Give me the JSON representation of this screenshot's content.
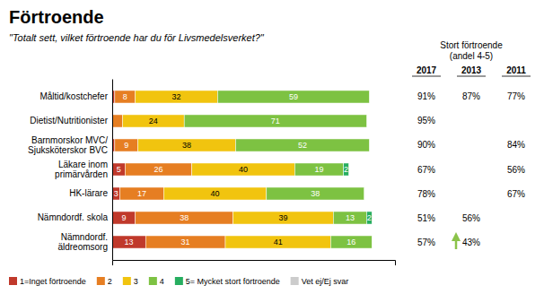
{
  "chart_data": {
    "type": "bar",
    "orientation": "horizontal",
    "stacked": true,
    "title": "Förtroende",
    "subtitle": "\"Totalt sett, vilket förtroende har du för Livsmedelsverket?\"",
    "categories": [
      "Måltid/kostchefer",
      "Dietist/Nutritionister",
      "Barnmorskor MVC/\nSjuksköterskor BVC",
      "Läkare inom\nprimärvården",
      "HK-lärare",
      "Nämndordf. skola",
      "Nämndordf.\näldreomsorg"
    ],
    "series": [
      {
        "name": "1=Inget förtroende",
        "color": "#c0392b",
        "values": [
          1,
          0,
          1,
          5,
          3,
          9,
          13
        ],
        "value_labels": [
          null,
          null,
          null,
          "5",
          "3",
          "9",
          "13"
        ]
      },
      {
        "name": "2",
        "color": "#e67e22",
        "values": [
          8,
          4,
          9,
          26,
          17,
          38,
          31
        ],
        "value_labels": [
          "8",
          null,
          "9",
          "26",
          "17",
          "38",
          "31"
        ]
      },
      {
        "name": "3",
        "color": "#f1c40f",
        "values": [
          32,
          24,
          38,
          40,
          40,
          39,
          41
        ],
        "value_labels": [
          "32",
          "24",
          "38",
          "40",
          "40",
          "39",
          "41"
        ]
      },
      {
        "name": "4",
        "color": "#7dc242",
        "values": [
          59,
          71,
          52,
          19,
          38,
          13,
          16
        ],
        "value_labels": [
          "59",
          "71",
          "52",
          "19",
          "38",
          "13",
          "16"
        ]
      },
      {
        "name": "5= Mycket stort förtroende",
        "color": "#27ae60",
        "values": [
          0,
          0,
          0,
          2,
          0,
          2,
          0
        ],
        "value_labels": [
          null,
          null,
          null,
          "2",
          null,
          "2",
          null
        ]
      },
      {
        "name": "Vet ej/Ej svar",
        "color": "#cccccc",
        "values": [
          null,
          null,
          null,
          null,
          null,
          null,
          null
        ]
      }
    ],
    "xlim": [
      0,
      110
    ],
    "tick_labels": "y",
    "data_labels": true,
    "grid": false,
    "legend": "bottom",
    "table": {
      "title": "Stort förtroende\n(andel 4-5)",
      "columns": [
        {
          "name": "2017",
          "values": [
            91,
            95,
            90,
            67,
            78,
            51,
            57
          ],
          "value_labels": [
            "91%",
            "95%",
            "90%",
            "67%",
            "78%",
            "51%",
            "57%"
          ]
        },
        {
          "name": "2013",
          "values": [
            87,
            null,
            null,
            null,
            null,
            56,
            43
          ],
          "value_labels": [
            "87%",
            null,
            null,
            null,
            null,
            "56%",
            "43%"
          ]
        },
        {
          "name": "2011",
          "values": [
            77,
            null,
            84,
            56,
            67,
            null,
            null
          ],
          "value_labels": [
            "77%",
            null,
            "84%",
            "56%",
            "67%",
            null,
            null
          ]
        }
      ]
    },
    "annotations": [
      {
        "category": "Nämndordf.\näldreomsorg",
        "column": "2013",
        "arrow": "up",
        "color": "#8bc34a"
      }
    ]
  }
}
